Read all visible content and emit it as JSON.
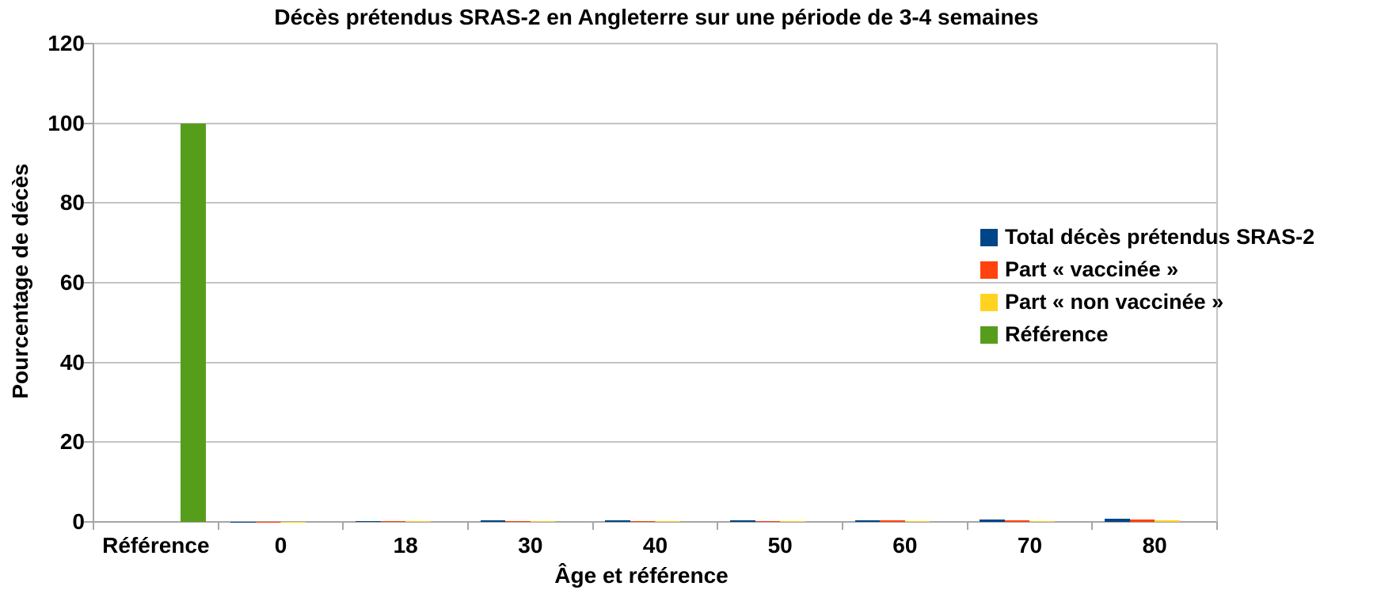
{
  "chart_title": "Décès prétendus SRAS-2 en Angleterre sur une période de 3-4 semaines",
  "chart_data": {
    "type": "bar",
    "title": "Décès prétendus SRAS-2 en Angleterre sur une période de 3-4 semaines",
    "xlabel": "Âge et référence",
    "ylabel": "Pourcentage de décès",
    "categories": [
      "Référence",
      "0",
      "18",
      "30",
      "40",
      "50",
      "60",
      "70",
      "80"
    ],
    "series": [
      {
        "name": "Total décès prétendus SRAS-2",
        "color": "#004586",
        "values": [
          0,
          0.05,
          0.25,
          0.3,
          0.3,
          0.35,
          0.4,
          0.5,
          0.7
        ]
      },
      {
        "name": "Part « vaccinée »",
        "color": "#FF420E",
        "values": [
          0,
          0.03,
          0.2,
          0.2,
          0.2,
          0.25,
          0.3,
          0.4,
          0.5
        ]
      },
      {
        "name": "Part « non vaccinée »",
        "color": "#FFD320",
        "values": [
          0,
          0.02,
          0.15,
          0.15,
          0.15,
          0.2,
          0.25,
          0.25,
          0.3
        ]
      },
      {
        "name": "Référence",
        "color": "#579D1C",
        "values": [
          100,
          0,
          0,
          0,
          0,
          0,
          0,
          0,
          0
        ]
      }
    ],
    "ylim": [
      0,
      120
    ],
    "yticks": [
      0,
      20,
      40,
      60,
      80,
      100,
      120
    ],
    "grid": true,
    "legend_position": "right-inside",
    "colors": {
      "background": "#ffffff",
      "grid": "#c4c4c4",
      "axis": "#a6a6a6",
      "text": "#000000"
    }
  }
}
